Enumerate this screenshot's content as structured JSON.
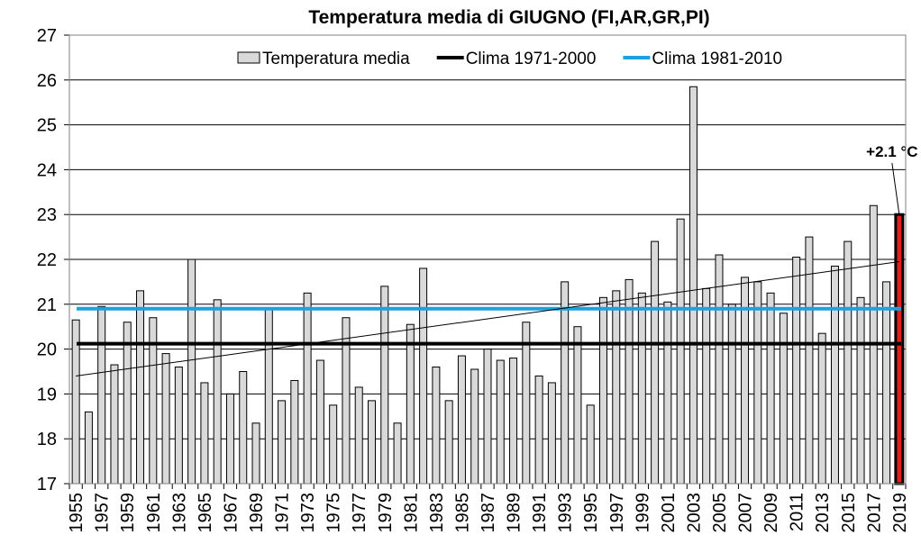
{
  "chart_data": {
    "type": "bar",
    "title": "Temperatura media di GIUGNO (FI,AR,GR,PI)",
    "ylim": [
      17,
      27
    ],
    "yticks": [
      17,
      18,
      19,
      20,
      21,
      22,
      23,
      24,
      25,
      26,
      27
    ],
    "grid": true,
    "legend_position": "top",
    "x": [
      1955,
      1956,
      1957,
      1958,
      1959,
      1960,
      1961,
      1962,
      1963,
      1964,
      1965,
      1966,
      1967,
      1968,
      1969,
      1970,
      1971,
      1972,
      1973,
      1974,
      1975,
      1976,
      1977,
      1978,
      1979,
      1980,
      1981,
      1982,
      1983,
      1984,
      1985,
      1986,
      1987,
      1988,
      1989,
      1990,
      1991,
      1992,
      1993,
      1994,
      1995,
      1996,
      1997,
      1998,
      1999,
      2000,
      2001,
      2002,
      2003,
      2004,
      2005,
      2006,
      2007,
      2008,
      2009,
      2010,
      2011,
      2012,
      2013,
      2014,
      2015,
      2016,
      2017,
      2018,
      2019
    ],
    "xtick_labels": [
      "1955",
      "1957",
      "1959",
      "1961",
      "1963",
      "1965",
      "1967",
      "1969",
      "1971",
      "1973",
      "1975",
      "1977",
      "1979",
      "1981",
      "1983",
      "1985",
      "1987",
      "1989",
      "1991",
      "1993",
      "1995",
      "1997",
      "1999",
      "2001",
      "2003",
      "2005",
      "2007",
      "2009",
      "2011",
      "2013",
      "2015",
      "2017",
      "2019"
    ],
    "series": [
      {
        "name": "Temperatura media",
        "color": "#d9d9d9",
        "highlight_color": "#e02020",
        "highlight_year": 2019,
        "values": [
          20.65,
          18.6,
          20.95,
          19.65,
          20.6,
          21.3,
          20.7,
          19.9,
          19.6,
          22.0,
          19.25,
          21.1,
          19.0,
          19.5,
          18.35,
          20.9,
          18.85,
          19.3,
          21.25,
          19.75,
          18.75,
          20.7,
          19.15,
          18.85,
          21.4,
          18.35,
          20.55,
          21.8,
          19.6,
          18.85,
          19.85,
          19.55,
          20.0,
          19.75,
          19.8,
          20.6,
          19.4,
          19.25,
          21.5,
          20.5,
          18.75,
          21.15,
          21.3,
          21.55,
          21.25,
          22.4,
          21.05,
          22.9,
          25.85,
          21.35,
          22.1,
          21.0,
          21.6,
          21.5,
          21.25,
          20.8,
          22.05,
          22.5,
          20.35,
          21.85,
          22.4,
          21.15,
          23.2,
          21.5,
          23.0
        ]
      },
      {
        "name": "Clima 1971-2000",
        "type": "hline",
        "value": 20.12,
        "color": "#000000"
      },
      {
        "name": "Clima 1981-2010",
        "type": "hline",
        "value": 20.9,
        "color": "#1aa3e0"
      },
      {
        "type": "trend",
        "y_start": 19.4,
        "y_end": 21.95,
        "color": "#000000"
      }
    ],
    "annotation": {
      "text": "+2.1 °C",
      "x": 2019
    }
  }
}
